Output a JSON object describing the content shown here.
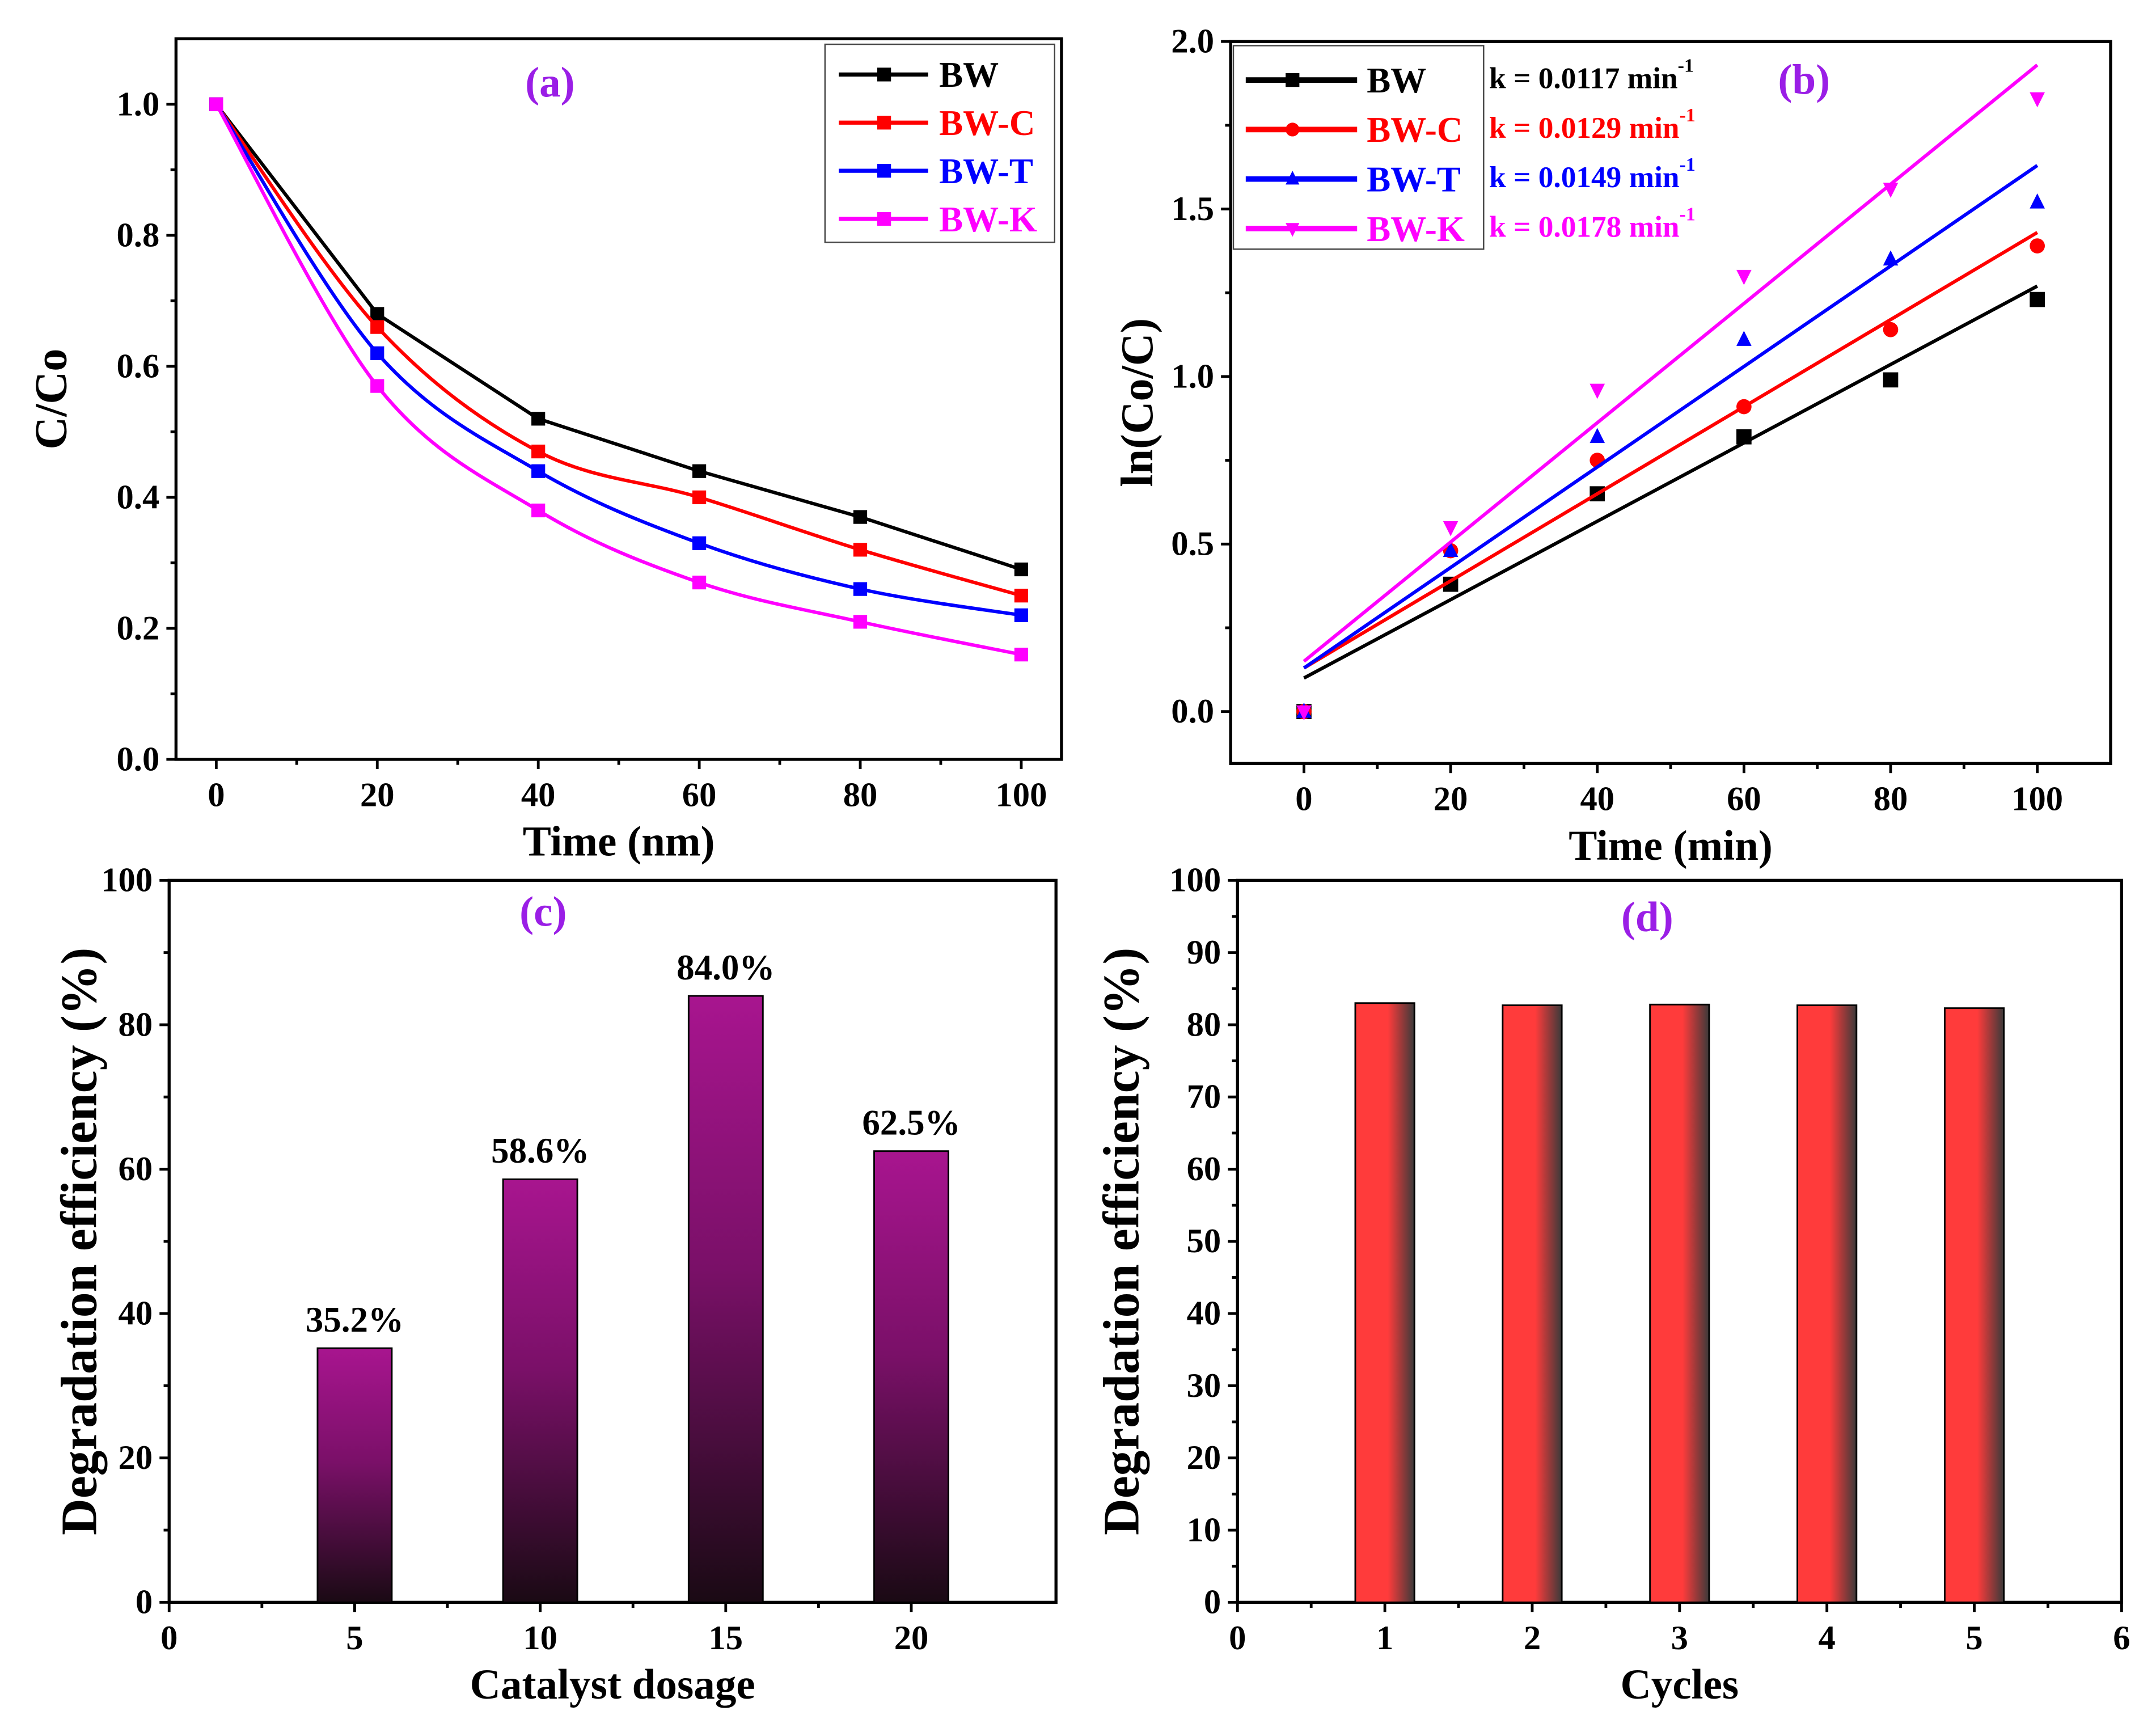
{
  "chart_data": [
    {
      "type": "line",
      "panel_label": "(a)",
      "xlabel": "Time (nm)",
      "ylabel": "C/Co",
      "xlim": [
        -5,
        105
      ],
      "ylim": [
        0,
        1.1
      ],
      "xticks": [
        0,
        20,
        40,
        60,
        80,
        100
      ],
      "yticks": [
        0.0,
        0.2,
        0.4,
        0.6,
        0.8,
        1.0
      ],
      "ytick_labels": [
        "0.0",
        "0.2",
        "0.4",
        "0.6",
        "0.8",
        "1.0"
      ],
      "legend_position": "top-right",
      "x": [
        0,
        20,
        40,
        60,
        80,
        100
      ],
      "series": [
        {
          "name": "BW",
          "color": "#000000",
          "marker": "square",
          "values": [
            1.0,
            0.68,
            0.52,
            0.44,
            0.37,
            0.29
          ]
        },
        {
          "name": "BW-C",
          "color": "#ff0000",
          "marker": "square",
          "values": [
            1.0,
            0.66,
            0.47,
            0.4,
            0.32,
            0.25
          ]
        },
        {
          "name": "BW-T",
          "color": "#0000ff",
          "marker": "square",
          "values": [
            1.0,
            0.62,
            0.44,
            0.33,
            0.26,
            0.22
          ]
        },
        {
          "name": "BW-K",
          "color": "#ff00ff",
          "marker": "square",
          "values": [
            1.0,
            0.57,
            0.38,
            0.27,
            0.21,
            0.16
          ]
        }
      ]
    },
    {
      "type": "scatter",
      "panel_label": "(b)",
      "xlabel": "Time (min)",
      "ylabel": "ln(Co/C)",
      "xlim": [
        -10,
        110
      ],
      "ylim": [
        -0.155,
        2.0
      ],
      "xticks": [
        0,
        20,
        40,
        60,
        80,
        100
      ],
      "yticks": [
        0.0,
        0.5,
        1.0,
        1.5,
        2.0
      ],
      "ytick_labels": [
        "0.0",
        "0.5",
        "1.0",
        "1.5",
        "2.0"
      ],
      "legend_position": "top-left",
      "x": [
        0,
        20,
        40,
        60,
        80,
        100
      ],
      "series": [
        {
          "name": "BW",
          "color": "#000000",
          "marker": "square",
          "values": [
            0,
            0.38,
            0.65,
            0.82,
            0.99,
            1.23
          ],
          "fit": [
            0.1,
            1.27
          ],
          "annotation": "k = 0.0117 min",
          "annotation_sup": "-1"
        },
        {
          "name": "BW-C",
          "color": "#ff0000",
          "marker": "circle",
          "values": [
            0,
            0.48,
            0.75,
            0.91,
            1.14,
            1.39
          ],
          "fit": [
            0.13,
            1.43
          ],
          "annotation": "k = 0.0129 min",
          "annotation_sup": "-1"
        },
        {
          "name": "BW-T",
          "color": "#0000ff",
          "marker": "triangle-up",
          "values": [
            0,
            0.48,
            0.82,
            1.11,
            1.35,
            1.52
          ],
          "fit": [
            0.13,
            1.63
          ],
          "annotation": "k = 0.0149 min",
          "annotation_sup": "-1"
        },
        {
          "name": "BW-K",
          "color": "#ff00ff",
          "marker": "triangle-down",
          "values": [
            0,
            0.55,
            0.96,
            1.3,
            1.56,
            1.83
          ],
          "fit": [
            0.15,
            1.93
          ],
          "annotation": "k = 0.0178 min",
          "annotation_sup": "-1"
        }
      ]
    },
    {
      "type": "bar",
      "panel_label": "(c)",
      "xlabel": "Catalyst dosage",
      "ylabel": "Degradation efficiency (%)",
      "xlim": [
        0,
        23.9
      ],
      "ylim": [
        0,
        100
      ],
      "xticks": [
        0,
        5,
        10,
        15,
        20
      ],
      "yticks": [
        0,
        20,
        40,
        60,
        80,
        100
      ],
      "categories": [
        5,
        10,
        15,
        20
      ],
      "values": [
        35.2,
        58.6,
        84.0,
        62.5
      ],
      "data_labels": [
        "35.2%",
        "58.6%",
        "84.0%",
        "62.5%"
      ],
      "color": "#a0158f"
    },
    {
      "type": "bar",
      "panel_label": "(d)",
      "xlabel": "Cycles",
      "ylabel": "Degradation efficiency (%)",
      "xlim": [
        0,
        6
      ],
      "ylim": [
        0,
        100
      ],
      "xticks": [
        0,
        1,
        2,
        3,
        4,
        5,
        6
      ],
      "yticks": [
        0,
        10,
        20,
        30,
        40,
        50,
        60,
        70,
        80,
        90,
        100
      ],
      "categories": [
        1,
        2,
        3,
        4,
        5
      ],
      "values": [
        83.0,
        82.7,
        82.8,
        82.7,
        82.3
      ],
      "color": "#ff3b3b"
    }
  ]
}
